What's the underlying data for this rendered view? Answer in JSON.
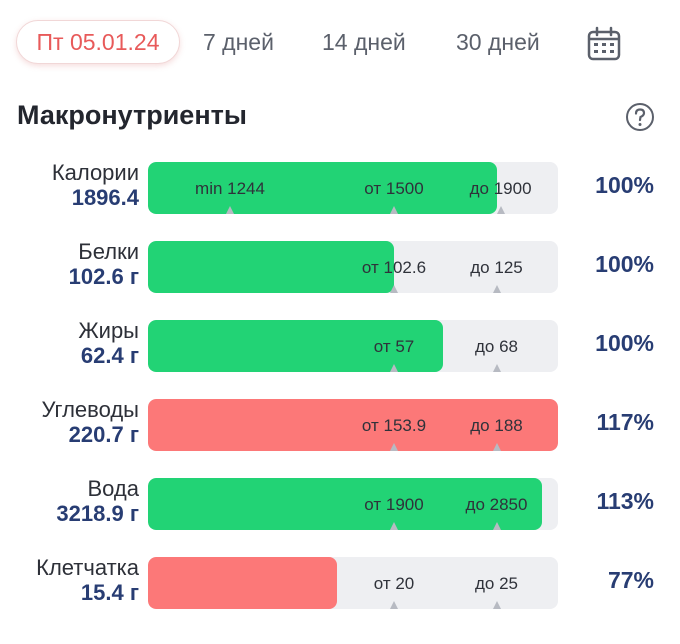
{
  "tabs": {
    "active": "Пт 05.01.24",
    "items": [
      "7 дней",
      "14 дней",
      "30 дней"
    ]
  },
  "icons": {
    "calendar": "calendar-icon",
    "help": "question-circle-icon"
  },
  "section_title": "Макронутриенты",
  "colors": {
    "green": "#22d375",
    "red": "#fc7878",
    "track": "#eeeff2",
    "accent": "#e85a5a",
    "value": "#283d73"
  },
  "rows": [
    {
      "name": "Калории",
      "value": "1896.4",
      "status": "green",
      "fill": 0.85,
      "markers": [
        {
          "label": "min 1244",
          "pos": 0.2
        },
        {
          "label": "от 1500",
          "pos": 0.6
        },
        {
          "label": "до 1900",
          "pos": 0.86
        }
      ],
      "percent": "100%"
    },
    {
      "name": "Белки",
      "value": "102.6 г",
      "status": "green",
      "fill": 0.6,
      "markers": [
        {
          "label": "от 102.6",
          "pos": 0.6
        },
        {
          "label": "до 125",
          "pos": 0.85
        }
      ],
      "percent": "100%"
    },
    {
      "name": "Жиры",
      "value": "62.4 г",
      "status": "green",
      "fill": 0.72,
      "markers": [
        {
          "label": "от 57",
          "pos": 0.6
        },
        {
          "label": "до 68",
          "pos": 0.85
        }
      ],
      "percent": "100%"
    },
    {
      "name": "Углеводы",
      "value": "220.7 г",
      "status": "red",
      "fill": 1.0,
      "markers": [
        {
          "label": "от 153.9",
          "pos": 0.6
        },
        {
          "label": "до 188",
          "pos": 0.85
        }
      ],
      "percent": "117%"
    },
    {
      "name": "Вода",
      "value": "3218.9 г",
      "status": "green",
      "fill": 0.96,
      "markers": [
        {
          "label": "от 1900",
          "pos": 0.6
        },
        {
          "label": "до 2850",
          "pos": 0.85
        }
      ],
      "percent": "113%"
    },
    {
      "name": "Клетчатка",
      "value": "15.4 г",
      "status": "red",
      "fill": 0.46,
      "markers": [
        {
          "label": "от 20",
          "pos": 0.6
        },
        {
          "label": "до 25",
          "pos": 0.85
        }
      ],
      "percent": "77%"
    }
  ]
}
